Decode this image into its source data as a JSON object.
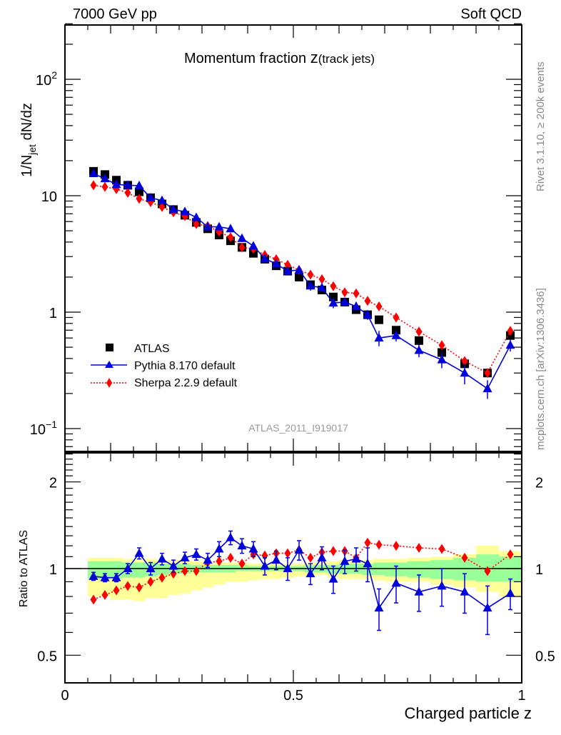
{
  "header": {
    "left": "7000 GeV pp",
    "right": "Soft QCD"
  },
  "side_labels": {
    "rivet": "Rivet 3.1.10, ≥ 200k events",
    "mcplots": "mcplots.cern.ch [arXiv:1306.3436]"
  },
  "chart_data": [
    {
      "type": "scatter",
      "panel": "main",
      "title_main": "Momentum fraction ",
      "title_var": "z",
      "title_sub": "(track jets)",
      "ylabel_main": "1/N",
      "ylabel_sub": "jet",
      "ylabel_rest": " dN/dz",
      "xlabel": "",
      "yscale": "log",
      "ylim": [
        0.065,
        300
      ],
      "xlim": [
        0,
        1
      ],
      "ytick_labels": [
        {
          "value": 100,
          "base": "10",
          "exp": "2"
        },
        {
          "value": 10,
          "base": "10",
          "exp": ""
        },
        {
          "value": 1,
          "base": "1",
          "exp": ""
        },
        {
          "value": 0.1,
          "base": "10",
          "exp": "−1"
        }
      ],
      "analysis_id": "ATLAS_2011_I919017",
      "legend_position": "bottom-left",
      "x": [
        0.0625,
        0.0875,
        0.1125,
        0.1375,
        0.1625,
        0.1875,
        0.2125,
        0.2375,
        0.2625,
        0.2875,
        0.3125,
        0.3375,
        0.3625,
        0.3875,
        0.4125,
        0.4375,
        0.4625,
        0.4875,
        0.5125,
        0.5375,
        0.5625,
        0.5875,
        0.6125,
        0.6375,
        0.6625,
        0.6875,
        0.725,
        0.775,
        0.825,
        0.875,
        0.925,
        0.975
      ],
      "series": [
        {
          "name": "ATLAS",
          "marker": "square",
          "color": "#000000",
          "line": "none",
          "values": [
            16.2,
            15.2,
            13.6,
            12.3,
            10.8,
            9.6,
            8.5,
            7.6,
            6.8,
            5.9,
            5.2,
            4.6,
            4.1,
            3.6,
            3.2,
            2.85,
            2.5,
            2.25,
            2.0,
            1.72,
            1.55,
            1.35,
            1.22,
            1.05,
            0.95,
            0.86,
            0.7,
            0.57,
            0.45,
            0.36,
            0.3,
            0.63
          ]
        },
        {
          "name": "Pythia 8.170 default",
          "marker": "triangle",
          "color": "#0000dd",
          "line": "solid",
          "values": [
            15.5,
            14.0,
            12.5,
            12.3,
            12.2,
            9.6,
            9.1,
            7.6,
            7.3,
            6.5,
            5.4,
            5.4,
            5.2,
            4.3,
            3.7,
            2.88,
            2.6,
            2.25,
            2.3,
            1.68,
            1.62,
            1.2,
            1.22,
            1.12,
            0.95,
            0.6,
            0.63,
            0.47,
            0.39,
            0.3,
            0.22,
            0.52
          ],
          "errors": [
            0.3,
            0.3,
            0.3,
            0.3,
            0.3,
            0.3,
            0.3,
            0.3,
            0.3,
            0.3,
            0.3,
            0.3,
            0.3,
            0.3,
            0.2,
            0.15,
            0.15,
            0.15,
            0.18,
            0.15,
            0.12,
            0.12,
            0.1,
            0.1,
            0.09,
            0.09,
            0.07,
            0.06,
            0.06,
            0.06,
            0.04,
            0.06
          ]
        },
        {
          "name": "Sherpa 2.2.9 default",
          "marker": "diamond",
          "color": "#ff0000",
          "line": "dotted",
          "values": [
            12.3,
            11.9,
            11.4,
            10.6,
            9.4,
            8.8,
            8.0,
            7.2,
            6.7,
            5.7,
            5.5,
            4.9,
            4.4,
            3.6,
            3.5,
            3.1,
            2.85,
            2.55,
            2.3,
            2.1,
            1.92,
            1.67,
            1.48,
            1.45,
            1.25,
            1.12,
            0.9,
            0.68,
            0.52,
            0.38,
            0.3,
            0.69
          ]
        }
      ]
    },
    {
      "type": "scatter",
      "panel": "ratio",
      "ylabel": "Ratio to ATLAS",
      "xlabel": "Charged particle z",
      "yscale": "log",
      "ylim": [
        0.4,
        2.5
      ],
      "xlim": [
        0,
        1
      ],
      "ytick_labels": [
        {
          "value": 2,
          "label": "2"
        },
        {
          "value": 1,
          "label": "1"
        },
        {
          "value": 0.5,
          "label": "0.5"
        }
      ],
      "xtick_labels": [
        {
          "value": 0,
          "label": "0"
        },
        {
          "value": 0.5,
          "label": "0.5"
        },
        {
          "value": 1,
          "label": "1"
        }
      ],
      "bin_edges": [
        0.05,
        0.075,
        0.1,
        0.125,
        0.15,
        0.175,
        0.2,
        0.225,
        0.25,
        0.275,
        0.3,
        0.325,
        0.35,
        0.375,
        0.4,
        0.425,
        0.45,
        0.475,
        0.5,
        0.525,
        0.55,
        0.575,
        0.6,
        0.625,
        0.65,
        0.675,
        0.7,
        0.75,
        0.8,
        0.85,
        0.9,
        0.95,
        1.0
      ],
      "band_stat_lo": [
        0.92,
        0.92,
        0.92,
        0.93,
        0.93,
        0.94,
        0.95,
        0.96,
        0.96,
        0.97,
        0.97,
        0.97,
        0.97,
        0.98,
        0.98,
        0.98,
        0.98,
        0.98,
        0.98,
        0.97,
        0.97,
        0.96,
        0.96,
        0.96,
        0.95,
        0.95,
        0.94,
        0.93,
        0.92,
        0.91,
        0.9,
        0.9
      ],
      "band_stat_hi": [
        1.06,
        1.06,
        1.06,
        1.05,
        1.05,
        1.05,
        1.04,
        1.04,
        1.04,
        1.03,
        1.03,
        1.03,
        1.03,
        1.03,
        1.02,
        1.02,
        1.02,
        1.02,
        1.02,
        1.03,
        1.03,
        1.03,
        1.04,
        1.04,
        1.04,
        1.05,
        1.05,
        1.06,
        1.07,
        1.09,
        1.12,
        1.1
      ],
      "band_tot_lo": [
        0.8,
        0.8,
        0.78,
        0.78,
        0.77,
        0.79,
        0.79,
        0.81,
        0.82,
        0.84,
        0.86,
        0.88,
        0.9,
        0.9,
        0.91,
        0.92,
        0.92,
        0.93,
        0.94,
        0.94,
        0.95,
        0.93,
        0.92,
        0.92,
        0.92,
        0.91,
        0.9,
        0.9,
        0.88,
        0.86,
        0.83,
        0.8
      ],
      "band_tot_hi": [
        1.09,
        1.09,
        1.09,
        1.08,
        1.08,
        1.08,
        1.07,
        1.07,
        1.07,
        1.06,
        1.05,
        1.05,
        1.05,
        1.05,
        1.04,
        1.04,
        1.04,
        1.04,
        1.04,
        1.05,
        1.05,
        1.06,
        1.07,
        1.07,
        1.07,
        1.08,
        1.08,
        1.09,
        1.1,
        1.12,
        1.2,
        1.15
      ],
      "x": [
        0.0625,
        0.0875,
        0.1125,
        0.1375,
        0.1625,
        0.1875,
        0.2125,
        0.2375,
        0.2625,
        0.2875,
        0.3125,
        0.3375,
        0.3625,
        0.3875,
        0.4125,
        0.4375,
        0.4625,
        0.4875,
        0.5125,
        0.5375,
        0.5625,
        0.5875,
        0.6125,
        0.6375,
        0.6625,
        0.6875,
        0.725,
        0.775,
        0.825,
        0.875,
        0.925,
        0.975
      ],
      "series": [
        {
          "name": "Pythia 8.170 default",
          "marker": "triangle",
          "color": "#0000dd",
          "line": "solid",
          "values": [
            0.94,
            0.93,
            0.93,
            1.0,
            1.13,
            1.0,
            1.08,
            1.02,
            1.09,
            1.12,
            1.07,
            1.17,
            1.28,
            1.2,
            1.17,
            1.02,
            1.07,
            1.0,
            1.16,
            0.96,
            1.09,
            0.92,
            1.06,
            1.08,
            1.04,
            0.73,
            0.89,
            0.83,
            0.87,
            0.83,
            0.73,
            0.82
          ],
          "errors": [
            0.03,
            0.03,
            0.03,
            0.04,
            0.05,
            0.05,
            0.05,
            0.05,
            0.05,
            0.05,
            0.06,
            0.07,
            0.07,
            0.07,
            0.07,
            0.07,
            0.08,
            0.09,
            0.09,
            0.08,
            0.1,
            0.1,
            0.1,
            0.1,
            0.14,
            0.12,
            0.13,
            0.12,
            0.13,
            0.13,
            0.14,
            0.1
          ]
        },
        {
          "name": "Sherpa 2.2.9 default",
          "marker": "diamond",
          "color": "#ff0000",
          "line": "dotted",
          "values": [
            0.78,
            0.81,
            0.84,
            0.87,
            0.86,
            0.9,
            0.93,
            0.96,
            0.98,
            0.98,
            1.05,
            1.06,
            1.09,
            1.04,
            1.12,
            1.11,
            1.13,
            1.13,
            1.16,
            1.09,
            1.14,
            1.15,
            1.15,
            1.09,
            1.23,
            1.21,
            1.2,
            1.18,
            1.17,
            1.09,
            0.98,
            1.12
          ]
        }
      ]
    }
  ]
}
